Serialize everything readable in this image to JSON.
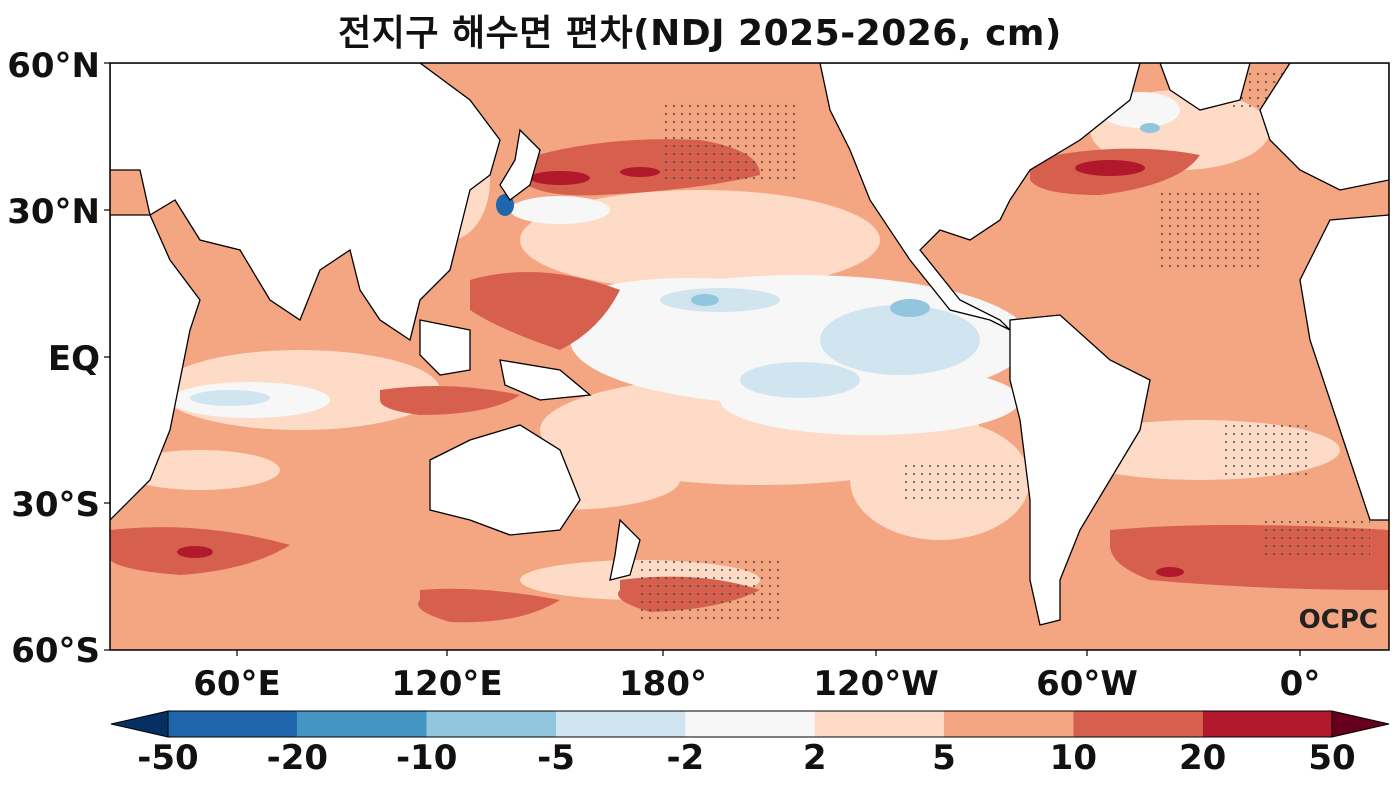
{
  "title": "전지구 해수면 편차(NDJ 2025-2026, cm)",
  "credit": "OCPC",
  "lat_labels": [
    "60°N",
    "30°N",
    "EQ",
    "30°S",
    "60°S"
  ],
  "lon_labels": [
    "60°E",
    "120°E",
    "180°",
    "120°W",
    "60°W",
    "0°"
  ],
  "colorbar": {
    "labels": [
      "-50",
      "-20",
      "-10",
      "-5",
      "-2",
      "2",
      "5",
      "10",
      "20",
      "50"
    ],
    "colors": [
      "#2066ac",
      "#4393c3",
      "#92c5de",
      "#d1e5f0",
      "#f7f7f7",
      "#fddbc7",
      "#f4a582",
      "#d6604d",
      "#b2182b"
    ],
    "under_color": "#053061",
    "over_color": "#67001f"
  },
  "colors": {
    "ocean_base": "#f4a582",
    "land": "#ffffff",
    "coast": "#000000"
  }
}
